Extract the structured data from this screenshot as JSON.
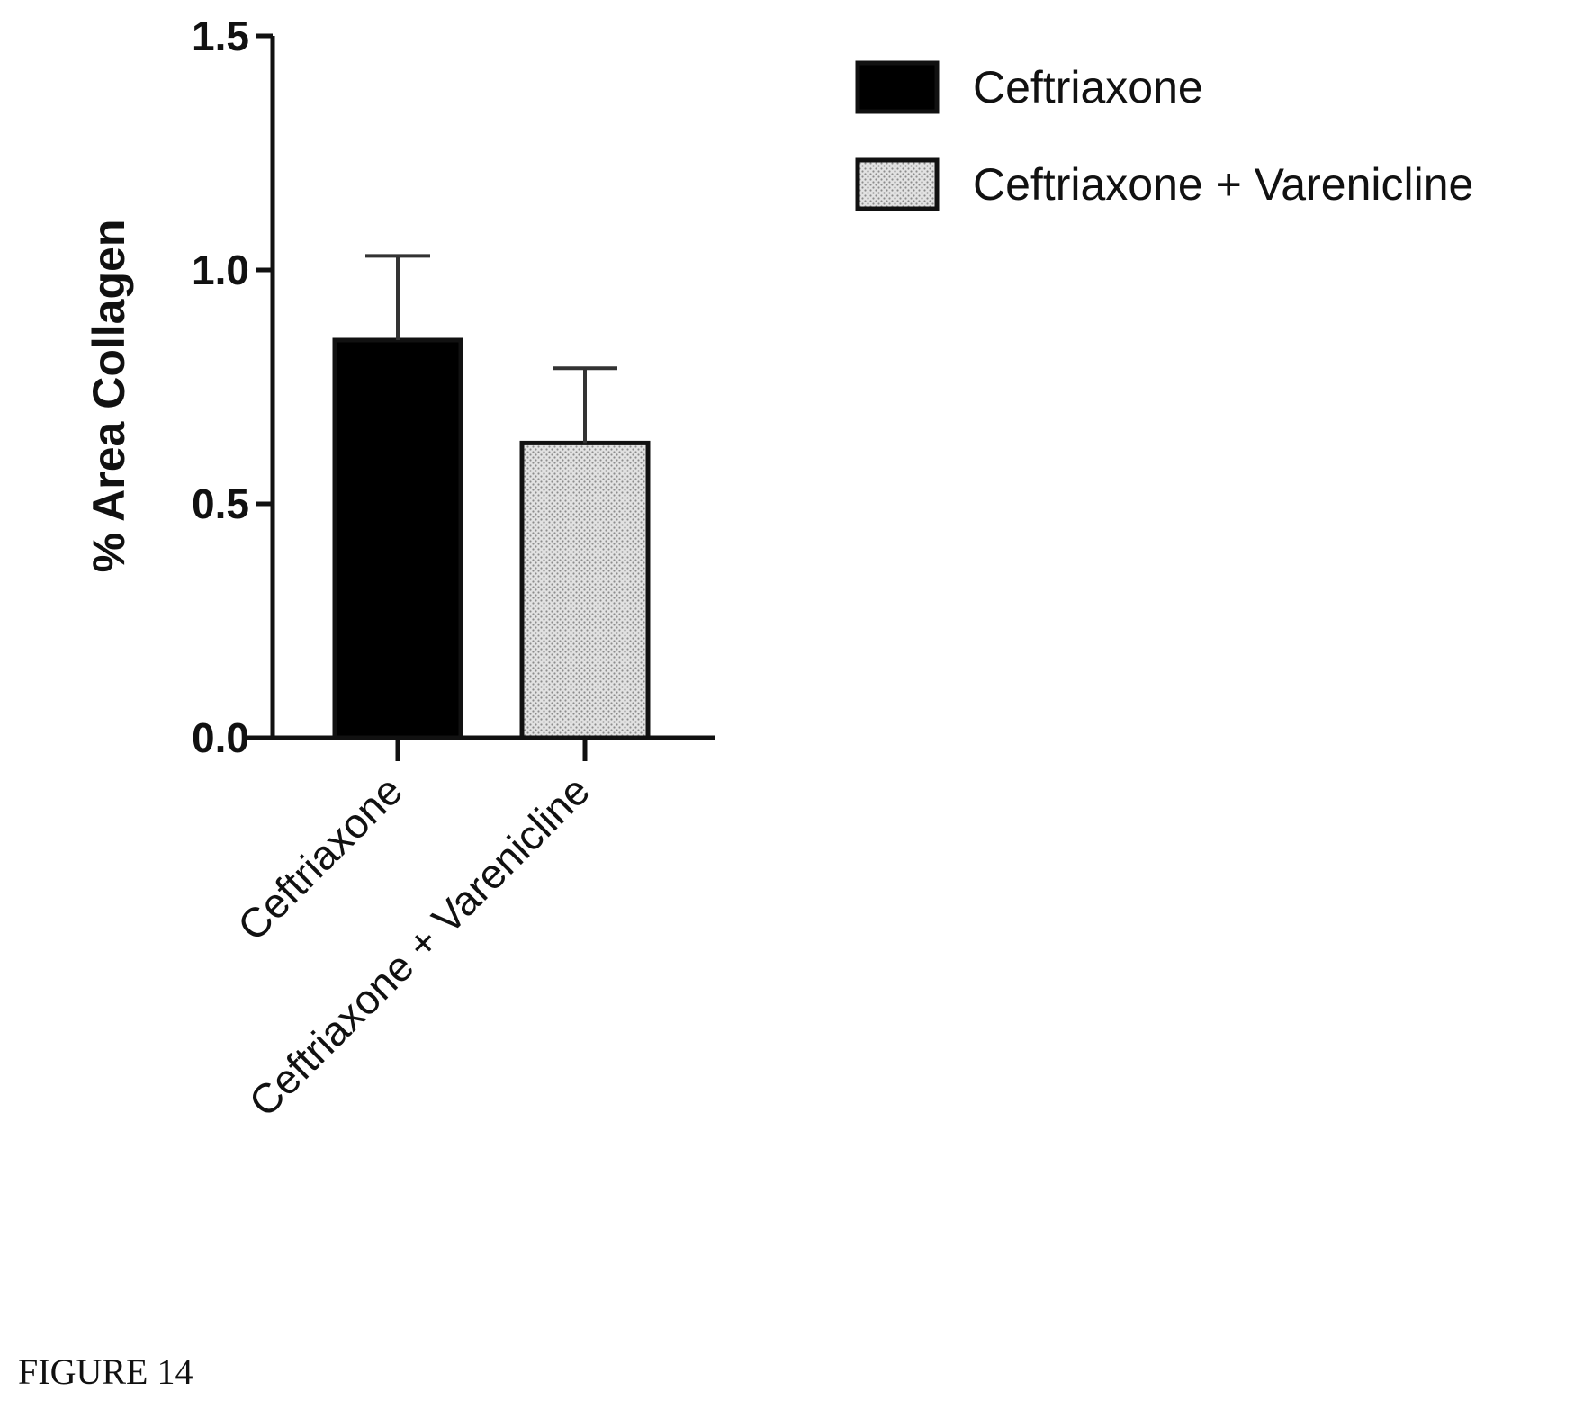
{
  "chart_data": {
    "type": "bar",
    "categories": [
      "Ceftriaxone",
      "Ceftriaxone + Varenicline"
    ],
    "values": [
      0.85,
      0.63
    ],
    "error": [
      0.18,
      0.16
    ],
    "ylabel": "% Area Collagen",
    "xlabel": "",
    "ylim": [
      0,
      1.5
    ],
    "yticks": [
      0.0,
      0.5,
      1.0,
      1.5
    ],
    "ytick_labels": [
      "0.0",
      "0.5",
      "1.0",
      "1.5"
    ],
    "grid": false,
    "legend": {
      "placement": "top-right",
      "entries": [
        "Ceftriaxone",
        "Ceftriaxone + Varenicline"
      ]
    },
    "colors": [
      "#000000",
      "#c8c8c8"
    ]
  },
  "caption": "FIGURE 14"
}
